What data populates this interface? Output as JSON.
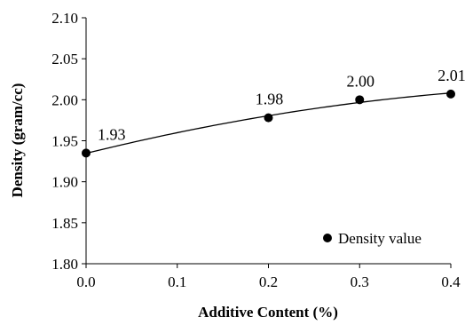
{
  "chart_data": {
    "type": "scatter",
    "xlabel": "Additive Content (%)",
    "ylabel": "Density (gram/cc)",
    "xlim": [
      0.0,
      0.4
    ],
    "ylim": [
      1.8,
      2.1
    ],
    "x_ticks": [
      "0.0",
      "0.1",
      "0.2",
      "0.3",
      "0.4"
    ],
    "y_ticks": [
      "1.80",
      "1.85",
      "1.90",
      "1.95",
      "2.00",
      "2.05",
      "2.10"
    ],
    "grid": false,
    "legend_position": "bottom-right",
    "trendline": true,
    "series": [
      {
        "name": "Density value",
        "x": [
          0.0,
          0.2,
          0.3,
          0.4
        ],
        "y": [
          1.935,
          1.978,
          2.0,
          2.007
        ],
        "labels": [
          "1.93",
          "1.98",
          "2.00",
          "2.01"
        ],
        "color": "#000000"
      }
    ]
  }
}
